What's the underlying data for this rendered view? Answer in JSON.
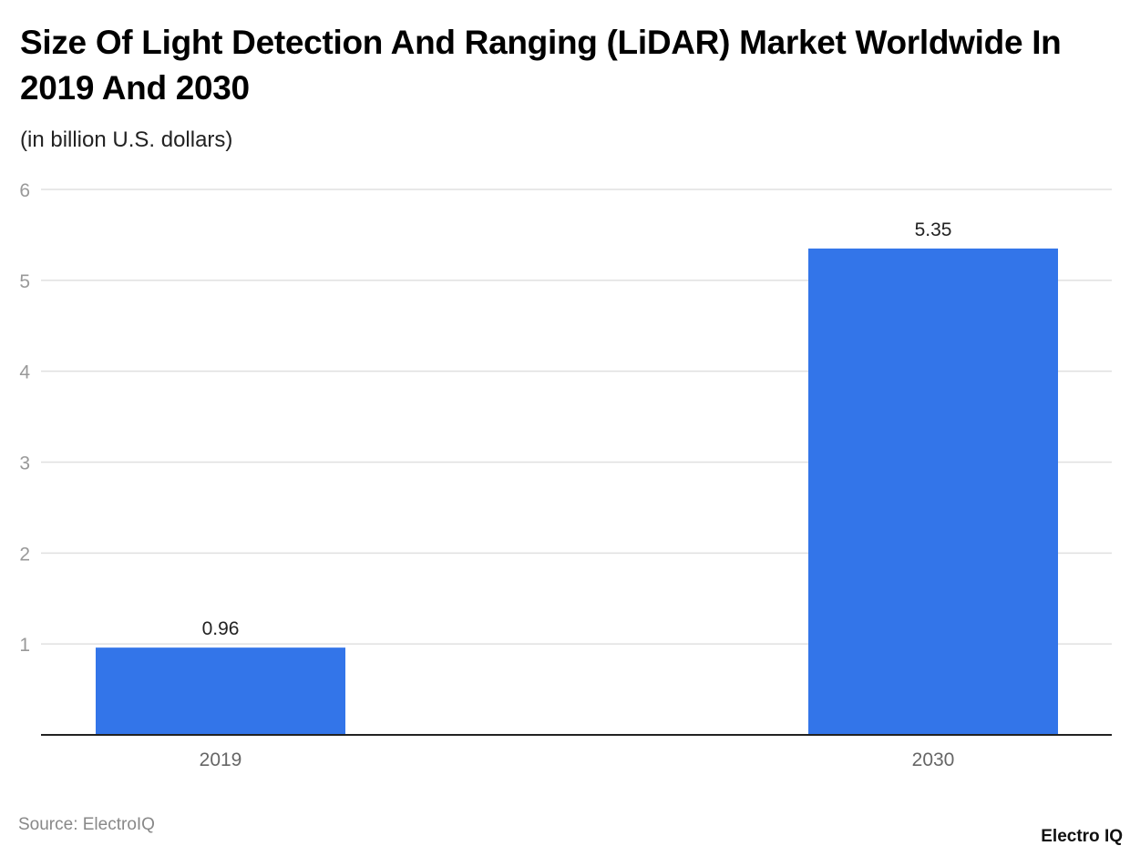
{
  "header": {
    "title": "Size Of Light Detection And Ranging (LiDAR) Market Worldwide In 2019 And 2030",
    "subtitle": "(in billion U.S. dollars)"
  },
  "footer": {
    "source": "Source: ElectroIQ",
    "logo": "Electro IQ"
  },
  "chart_data": {
    "type": "bar",
    "title": "Size Of Light Detection And Ranging (LiDAR) Market Worldwide In 2019 And 2030",
    "subtitle": "(in billion U.S. dollars)",
    "categories": [
      "2019",
      "2030"
    ],
    "values": [
      0.96,
      5.35
    ],
    "data_labels": [
      "0.96",
      "5.35"
    ],
    "ylim": [
      0,
      6
    ],
    "yticks": [
      1,
      2,
      3,
      4,
      5,
      6
    ],
    "grid": true,
    "bar_color": "#3375e9"
  }
}
